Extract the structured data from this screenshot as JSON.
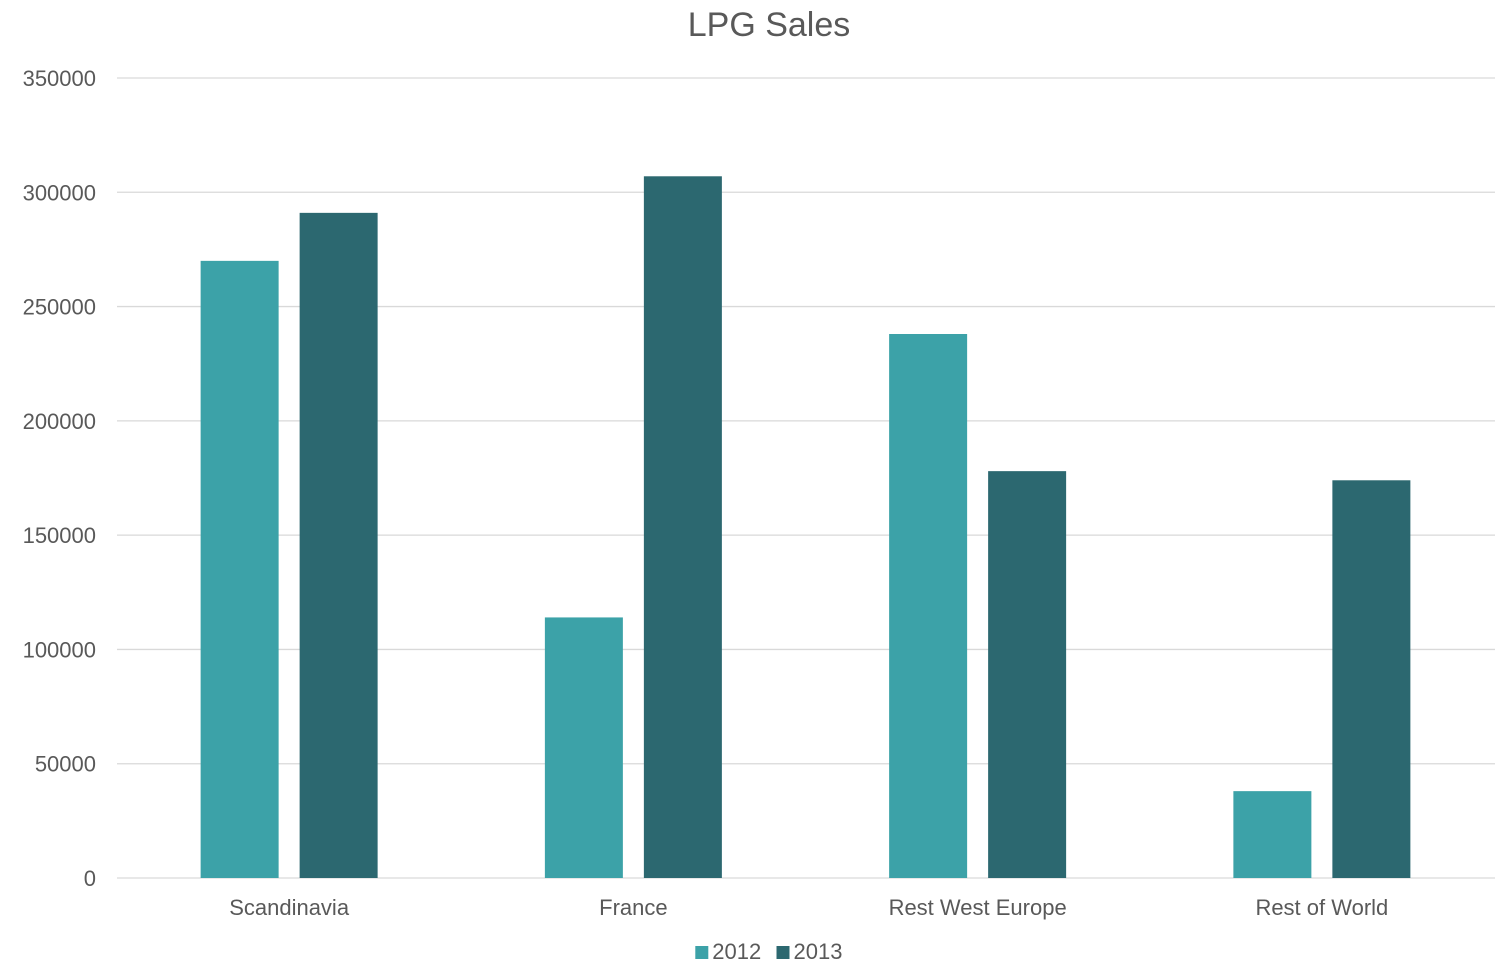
{
  "chart_data": {
    "type": "bar",
    "title": "LPG Sales",
    "categories": [
      "Scandinavia",
      "France",
      "Rest West Europe",
      "Rest of World"
    ],
    "series": [
      {
        "name": "2012",
        "values": [
          270000,
          114000,
          238000,
          38000
        ],
        "color": "#3ca2a8"
      },
      {
        "name": "2013",
        "values": [
          291000,
          307000,
          178000,
          174000
        ],
        "color": "#2c6870"
      }
    ],
    "ylim": [
      0,
      350000
    ],
    "yticks": [
      0,
      50000,
      100000,
      150000,
      200000,
      250000,
      300000,
      350000
    ],
    "xlabel": "",
    "ylabel": "",
    "grid": true,
    "legend": "bottom-center"
  }
}
